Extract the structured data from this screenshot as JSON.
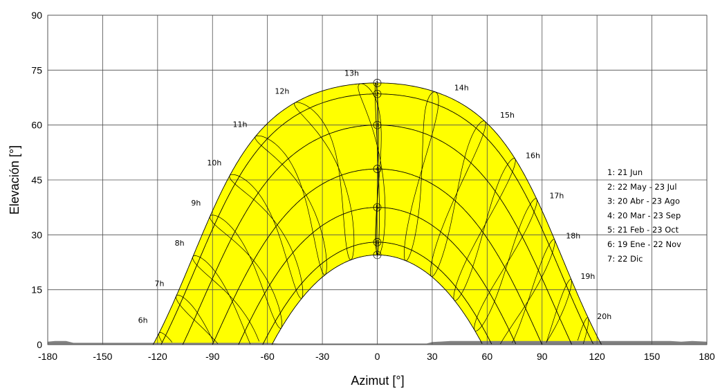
{
  "chart_data": {
    "type": "line",
    "xlabel": "Azimut [°]",
    "ylabel": "Elevación [°]",
    "xlim": [
      -180,
      180
    ],
    "ylim": [
      0,
      90
    ],
    "x_ticks": [
      "-180",
      "-150",
      "-120",
      "-90",
      "-60",
      "-30",
      "0",
      "30",
      "60",
      "90",
      "120",
      "150",
      "180"
    ],
    "y_ticks": [
      "0",
      "15",
      "30",
      "45",
      "60",
      "75",
      "90"
    ],
    "grid": true,
    "legend_position": "right",
    "colors": {
      "sun_area": "#ffff00",
      "curve": "#000000",
      "grid": "#4d4d4d",
      "horizon": "#808080"
    },
    "day_curves": [
      {
        "marker": "1",
        "label": "1: 21 Jun",
        "noon_elevation": 71.5,
        "sunset_azimuth": 121
      },
      {
        "marker": "2",
        "label": "2: 22 May - 23 Jul",
        "noon_elevation": 68.5,
        "sunset_azimuth": 118
      },
      {
        "marker": "3",
        "label": "3: 20 Abr - 23 Ago",
        "noon_elevation": 60,
        "sunset_azimuth": 107
      },
      {
        "marker": "4",
        "label": "4: 20 Mar - 23 Sep",
        "noon_elevation": 48,
        "sunset_azimuth": 90
      },
      {
        "marker": "5",
        "label": "5: 21 Feb - 23 Oct",
        "noon_elevation": 37.5,
        "sunset_azimuth": 78
      },
      {
        "marker": "6",
        "label": "6: 19 Ene - 22 Nov",
        "noon_elevation": 28,
        "sunset_azimuth": 66
      },
      {
        "marker": "7",
        "label": "7: 22 Dic",
        "noon_elevation": 24.5,
        "sunset_azimuth": 59
      }
    ],
    "hour_labels": [
      {
        "text": "6h",
        "azimuth": -128,
        "elevation": 6
      },
      {
        "text": "7h",
        "azimuth": -119,
        "elevation": 16
      },
      {
        "text": "8h",
        "azimuth": -108,
        "elevation": 27
      },
      {
        "text": "9h",
        "azimuth": -99,
        "elevation": 38
      },
      {
        "text": "10h",
        "azimuth": -89,
        "elevation": 49
      },
      {
        "text": "11h",
        "azimuth": -75,
        "elevation": 59.5
      },
      {
        "text": "12h",
        "azimuth": -52,
        "elevation": 68.5
      },
      {
        "text": "13h",
        "azimuth": -14,
        "elevation": 73.5
      },
      {
        "text": "14h",
        "azimuth": 46,
        "elevation": 69.5
      },
      {
        "text": "15h",
        "azimuth": 71,
        "elevation": 62
      },
      {
        "text": "16h",
        "azimuth": 85,
        "elevation": 51
      },
      {
        "text": "17h",
        "azimuth": 98,
        "elevation": 40
      },
      {
        "text": "18h",
        "azimuth": 107,
        "elevation": 29
      },
      {
        "text": "19h",
        "azimuth": 115,
        "elevation": 18
      },
      {
        "text": "20h",
        "azimuth": 124,
        "elevation": 7
      }
    ],
    "horizon_profile": [
      [
        -180,
        0.8
      ],
      [
        -176,
        1.0
      ],
      [
        -170,
        1.0
      ],
      [
        -166,
        0.5
      ],
      [
        -120,
        0.5
      ],
      [
        -60,
        0.5
      ],
      [
        -54,
        0.3
      ],
      [
        27,
        0.3
      ],
      [
        30,
        0.7
      ],
      [
        40,
        1.0
      ],
      [
        90,
        1.0
      ],
      [
        160,
        1.0
      ],
      [
        166,
        0.8
      ],
      [
        172,
        1.0
      ],
      [
        180,
        0.8
      ]
    ]
  }
}
